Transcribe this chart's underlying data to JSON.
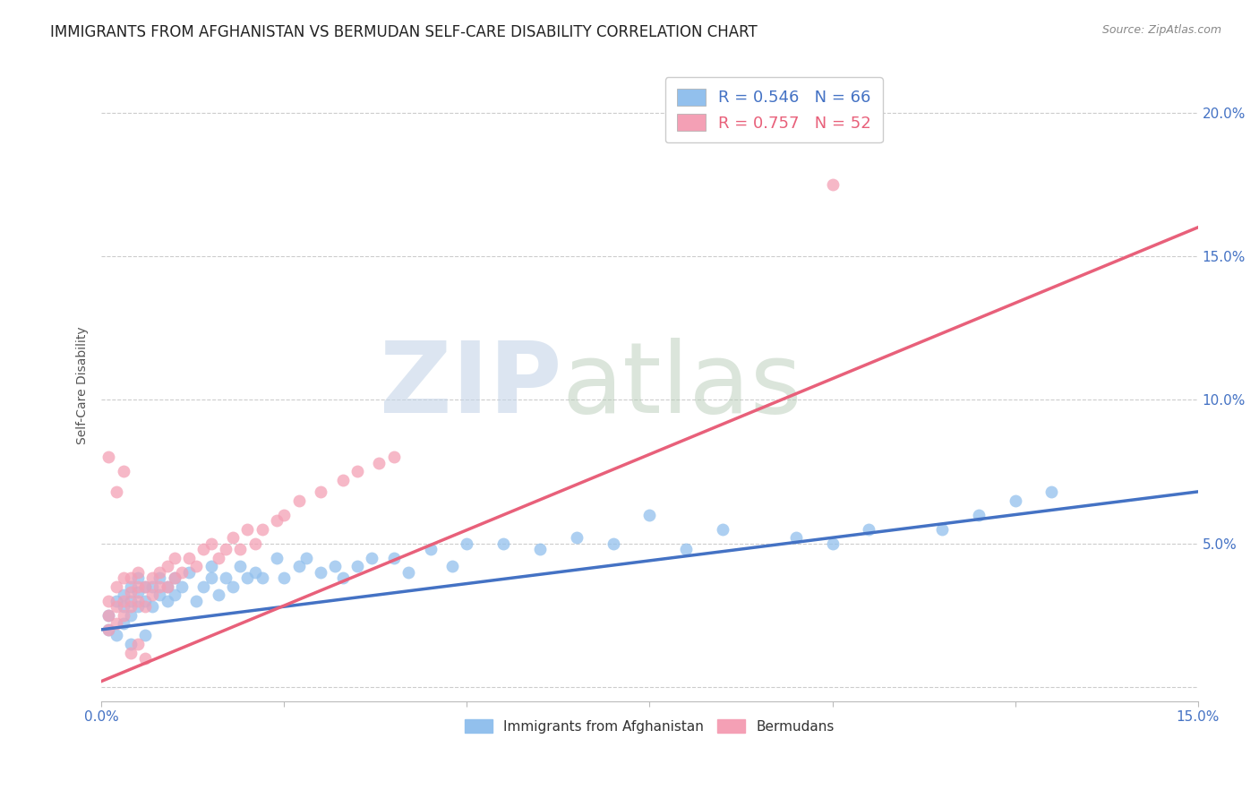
{
  "title": "IMMIGRANTS FROM AFGHANISTAN VS BERMUDAN SELF-CARE DISABILITY CORRELATION CHART",
  "source_text": "Source: ZipAtlas.com",
  "ylabel": "Self-Care Disability",
  "xlim": [
    0.0,
    0.15
  ],
  "ylim": [
    -0.005,
    0.215
  ],
  "blue_color": "#92C0ED",
  "pink_color": "#F4A0B5",
  "blue_line_color": "#4472C4",
  "pink_line_color": "#E8607A",
  "legend_text_blue": "R = 0.546   N = 66",
  "legend_text_pink": "R = 0.757   N = 52",
  "legend_label_blue": "Immigrants from Afghanistan",
  "legend_label_pink": "Bermudans",
  "watermark_zip": "ZIP",
  "watermark_atlas": "atlas",
  "blue_scatter_x": [
    0.001,
    0.001,
    0.002,
    0.002,
    0.003,
    0.003,
    0.003,
    0.004,
    0.004,
    0.004,
    0.005,
    0.005,
    0.005,
    0.006,
    0.006,
    0.007,
    0.007,
    0.008,
    0.008,
    0.009,
    0.009,
    0.01,
    0.01,
    0.011,
    0.012,
    0.013,
    0.014,
    0.015,
    0.015,
    0.016,
    0.017,
    0.018,
    0.019,
    0.02,
    0.021,
    0.022,
    0.024,
    0.025,
    0.027,
    0.028,
    0.03,
    0.032,
    0.033,
    0.035,
    0.037,
    0.04,
    0.042,
    0.045,
    0.048,
    0.05,
    0.055,
    0.06,
    0.065,
    0.07,
    0.075,
    0.08,
    0.085,
    0.095,
    0.1,
    0.105,
    0.115,
    0.12,
    0.125,
    0.13,
    0.004,
    0.006
  ],
  "blue_scatter_y": [
    0.02,
    0.025,
    0.018,
    0.03,
    0.022,
    0.028,
    0.032,
    0.025,
    0.03,
    0.035,
    0.028,
    0.033,
    0.038,
    0.03,
    0.035,
    0.028,
    0.035,
    0.032,
    0.038,
    0.03,
    0.035,
    0.032,
    0.038,
    0.035,
    0.04,
    0.03,
    0.035,
    0.038,
    0.042,
    0.032,
    0.038,
    0.035,
    0.042,
    0.038,
    0.04,
    0.038,
    0.045,
    0.038,
    0.042,
    0.045,
    0.04,
    0.042,
    0.038,
    0.042,
    0.045,
    0.045,
    0.04,
    0.048,
    0.042,
    0.05,
    0.05,
    0.048,
    0.052,
    0.05,
    0.06,
    0.048,
    0.055,
    0.052,
    0.05,
    0.055,
    0.055,
    0.06,
    0.065,
    0.068,
    0.015,
    0.018
  ],
  "pink_scatter_x": [
    0.001,
    0.001,
    0.001,
    0.002,
    0.002,
    0.002,
    0.003,
    0.003,
    0.003,
    0.004,
    0.004,
    0.004,
    0.005,
    0.005,
    0.005,
    0.006,
    0.006,
    0.007,
    0.007,
    0.008,
    0.008,
    0.009,
    0.009,
    0.01,
    0.01,
    0.011,
    0.012,
    0.013,
    0.014,
    0.015,
    0.016,
    0.017,
    0.018,
    0.019,
    0.02,
    0.021,
    0.022,
    0.024,
    0.025,
    0.027,
    0.03,
    0.033,
    0.035,
    0.038,
    0.04,
    0.002,
    0.003,
    0.004,
    0.005,
    0.006,
    0.1,
    0.001
  ],
  "pink_scatter_y": [
    0.02,
    0.025,
    0.03,
    0.022,
    0.028,
    0.035,
    0.025,
    0.03,
    0.038,
    0.028,
    0.033,
    0.038,
    0.03,
    0.035,
    0.04,
    0.028,
    0.035,
    0.032,
    0.038,
    0.035,
    0.04,
    0.035,
    0.042,
    0.038,
    0.045,
    0.04,
    0.045,
    0.042,
    0.048,
    0.05,
    0.045,
    0.048,
    0.052,
    0.048,
    0.055,
    0.05,
    0.055,
    0.058,
    0.06,
    0.065,
    0.068,
    0.072,
    0.075,
    0.078,
    0.08,
    0.068,
    0.075,
    0.012,
    0.015,
    0.01,
    0.175,
    0.08
  ],
  "blue_line_x": [
    0.0,
    0.15
  ],
  "blue_line_y": [
    0.02,
    0.068
  ],
  "pink_line_x": [
    0.0,
    0.15
  ],
  "pink_line_y": [
    0.002,
    0.16
  ],
  "background_color": "#FFFFFF",
  "grid_color": "#CCCCCC",
  "title_fontsize": 12,
  "tick_fontsize": 11,
  "tick_color_blue": "#4472C4",
  "ylabel_fontsize": 10
}
